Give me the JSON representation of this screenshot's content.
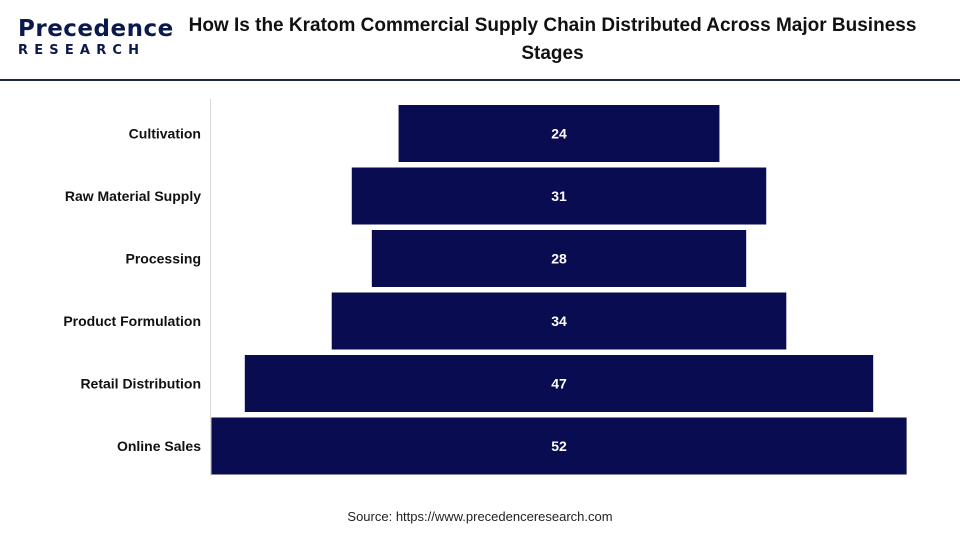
{
  "brand": {
    "logo_top": "Precedence",
    "logo_bottom": "RESEARCH"
  },
  "source": "Source: https://www.precedenceresearch.com",
  "colors": {
    "bar": "#0a0c52",
    "bar_label": "#ffffff",
    "axis_line": "#d9d9d9",
    "header_rule": "#1f2a44"
  },
  "chart_data": {
    "type": "bar",
    "orientation": "horizontal",
    "layout": "funnel",
    "title": "How Is the Kratom Commercial Supply Chain Distributed Across Major Business Stages",
    "categories": [
      "Cultivation",
      "Raw Material Supply",
      "Processing",
      "Product Formulation",
      "Retail Distribution",
      "Online Sales"
    ],
    "values": [
      24,
      31,
      28,
      34,
      47,
      52
    ],
    "data_labels": true,
    "xlabel": "",
    "ylabel": "",
    "grid": false,
    "legend": "none"
  }
}
